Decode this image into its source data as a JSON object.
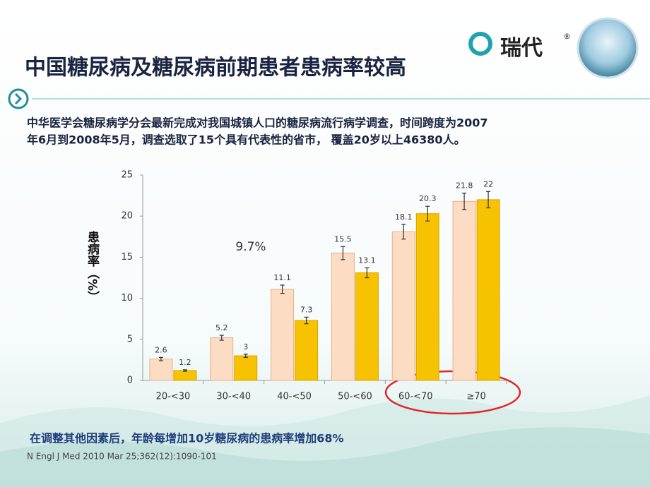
{
  "logo": {
    "name": "瑞代",
    "mark": "®"
  },
  "header": {
    "title": "中国糖尿病及糖尿病前期患者患病率较高"
  },
  "description": [
    "中华医学会糖尿病学分会最新完成对我国城镇人口的糖尿病流行病学调查，时间跨度为2007",
    "年6月到2008年5月，调查选取了15个具有代表性的省市， 覆盖20岁以上46380人。"
  ],
  "chart_data": {
    "type": "bar",
    "y_label": "患病率（%）",
    "annotation": "9.7%",
    "categories": [
      "20-<30",
      "30-<40",
      "40-<50",
      "50-<60",
      "60-<70",
      "≥70"
    ],
    "series": [
      {
        "color": "#fcdcc2",
        "values": [
          2.6,
          5.2,
          11.1,
          15.5,
          18.1,
          21.8
        ],
        "errors": [
          0.2,
          0.3,
          0.5,
          0.8,
          0.9,
          1.0
        ]
      },
      {
        "color": "#f7c200",
        "values": [
          1.2,
          3,
          7.3,
          13.1,
          20.3,
          22
        ],
        "errors": [
          0.1,
          0.2,
          0.4,
          0.6,
          0.9,
          1.0
        ]
      }
    ],
    "ylim": [
      0,
      25
    ],
    "yticks": [
      0,
      5,
      10,
      15,
      20,
      25
    ]
  },
  "footer": {
    "conclusion": "在调整其他因素后，年龄每增加10岁糖尿病的患病率增加68%",
    "citation": "N Engl J Med  2010 Mar 25;362(12):1090-101"
  }
}
